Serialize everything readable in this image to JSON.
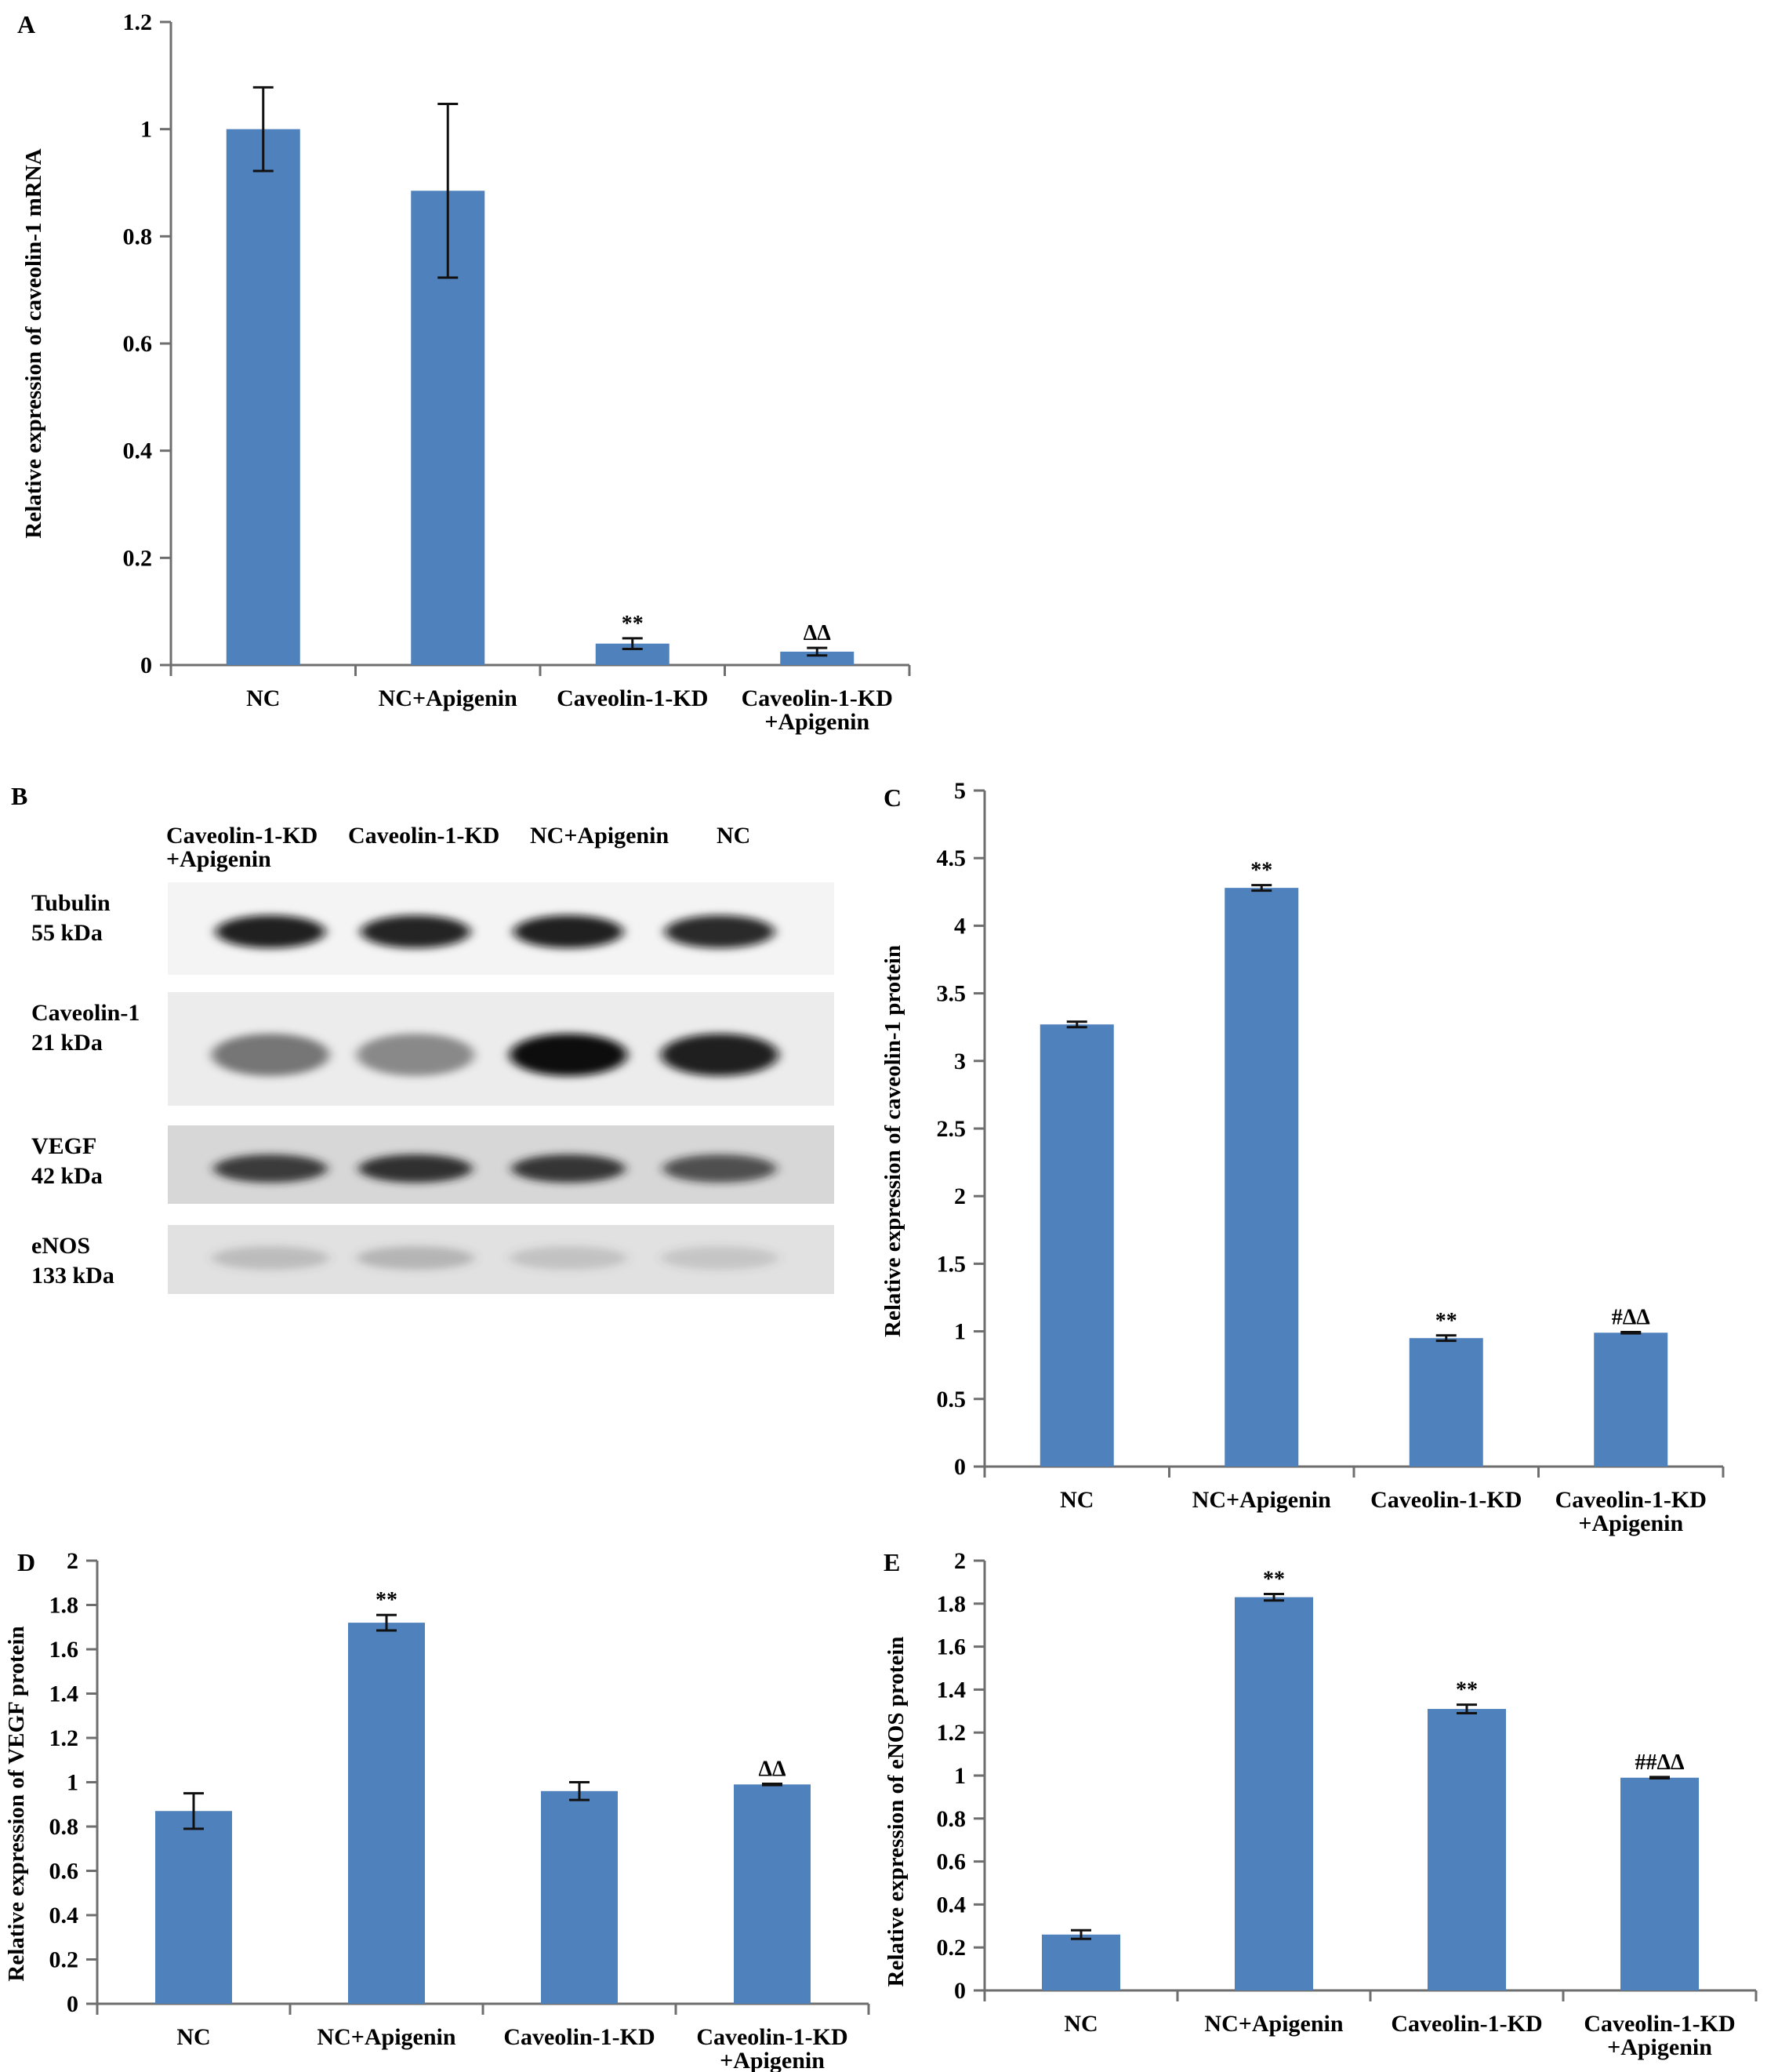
{
  "colors": {
    "bar": "#4f81bd",
    "axis": "#6e6e6e",
    "text": "#000000"
  },
  "chart_data": [
    {
      "panel": "A",
      "type": "bar",
      "categories": [
        [
          "NC"
        ],
        [
          "NC+Apigenin"
        ],
        [
          "Caveolin-1-KD"
        ],
        [
          "Caveolin-1-KD",
          "+Apigenin"
        ]
      ],
      "values": [
        1.0,
        0.885,
        0.04,
        0.025
      ],
      "errors": [
        0.078,
        0.162,
        0.01,
        0.007
      ],
      "annotations": [
        "",
        "",
        "**",
        "ΔΔ"
      ],
      "ylabel": "Relative expression of caveolin-1 mRNA",
      "ylim": [
        0,
        1.2
      ],
      "yticks": [
        "0",
        "0.2",
        "0.4",
        "0.6",
        "0.8",
        "1",
        "1.2"
      ],
      "grid": false
    },
    {
      "panel": "C",
      "type": "bar",
      "categories": [
        [
          "NC"
        ],
        [
          "NC+Apigenin"
        ],
        [
          "Caveolin-1-KD"
        ],
        [
          "Caveolin-1-KD",
          "+Apigenin"
        ]
      ],
      "values": [
        3.27,
        4.28,
        0.95,
        0.99
      ],
      "errors": [
        0.02,
        0.02,
        0.02,
        0.005
      ],
      "annotations": [
        "",
        "**",
        "**",
        "#ΔΔ"
      ],
      "ylabel": "Relative expression of caveolin-1 protein",
      "ylim": [
        0,
        5
      ],
      "yticks": [
        "0",
        "0.5",
        "1",
        "1.5",
        "2",
        "2.5",
        "3",
        "3.5",
        "4",
        "4.5",
        "5"
      ],
      "grid": false
    },
    {
      "panel": "D",
      "type": "bar",
      "categories": [
        [
          "NC"
        ],
        [
          "NC+Apigenin"
        ],
        [
          "Caveolin-1-KD"
        ],
        [
          "Caveolin-1-KD",
          "+Apigenin"
        ]
      ],
      "values": [
        0.87,
        1.72,
        0.96,
        0.99
      ],
      "errors": [
        0.08,
        0.035,
        0.04,
        0.003
      ],
      "annotations": [
        "",
        "**",
        "",
        "ΔΔ"
      ],
      "ylabel": "Relative expression of VEGF protein",
      "ylim": [
        0,
        2
      ],
      "yticks": [
        "0",
        "0.2",
        "0.4",
        "0.6",
        "0.8",
        "1",
        "1.2",
        "1.4",
        "1.6",
        "1.8",
        "2"
      ],
      "grid": false
    },
    {
      "panel": "E",
      "type": "bar",
      "categories": [
        [
          "NC"
        ],
        [
          "NC+Apigenin"
        ],
        [
          "Caveolin-1-KD"
        ],
        [
          "Caveolin-1-KD",
          "+Apigenin"
        ]
      ],
      "values": [
        0.26,
        1.83,
        1.31,
        0.99
      ],
      "errors": [
        0.02,
        0.015,
        0.02,
        0.003
      ],
      "annotations": [
        "",
        "**",
        "**",
        "##ΔΔ"
      ],
      "ylabel": "Relative expression of eNOS protein",
      "ylim": [
        0,
        2
      ],
      "yticks": [
        "0",
        "0.2",
        "0.4",
        "0.6",
        "0.8",
        "1",
        "1.2",
        "1.4",
        "1.6",
        "1.8",
        "2"
      ],
      "grid": false
    }
  ],
  "blot": {
    "panel": "B",
    "lanes": [
      [
        "Caveolin-1-KD",
        "+Apigenin"
      ],
      [
        "Caveolin-1-KD"
      ],
      [
        "NC+Apigenin"
      ],
      [
        "NC"
      ]
    ],
    "rows": [
      {
        "protein": "Tubulin",
        "size": "55 kDa",
        "intensity": [
          0.92,
          0.9,
          0.92,
          0.88
        ]
      },
      {
        "protein": "Caveolin-1",
        "size": "21 kDa",
        "intensity": [
          0.5,
          0.42,
          1.0,
          0.92
        ]
      },
      {
        "protein": "VEGF",
        "size": "42 kDa",
        "intensity": [
          0.85,
          0.9,
          0.88,
          0.72
        ]
      },
      {
        "protein": "eNOS",
        "size": "133 kDa",
        "intensity": [
          0.25,
          0.3,
          0.22,
          0.18
        ]
      }
    ]
  }
}
